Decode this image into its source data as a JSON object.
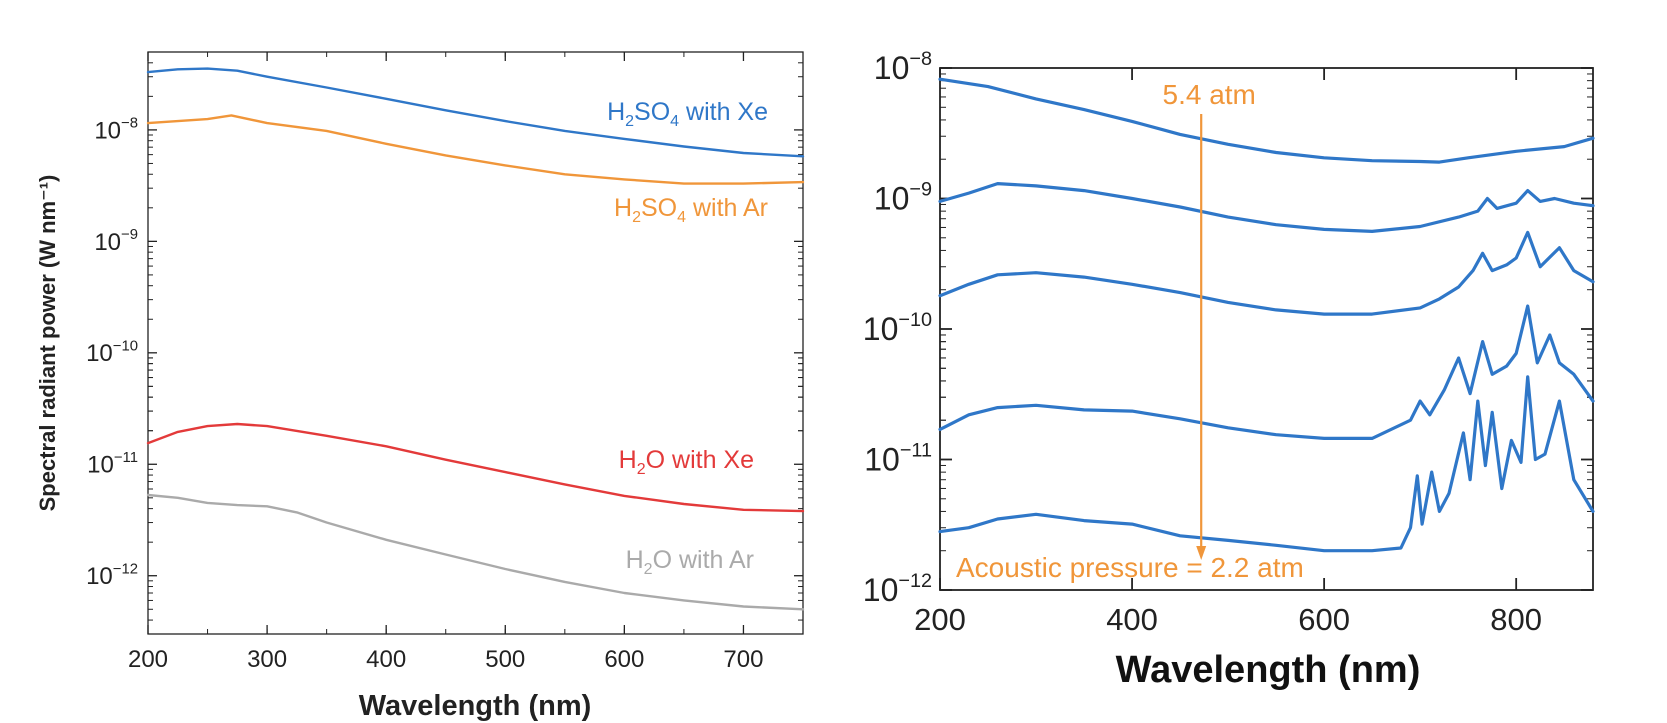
{
  "chart_data": [
    {
      "type": "line",
      "panel": "left",
      "xlabel": "Wavelength (nm)",
      "ylabel": "Spectral radiant power (W nm⁻¹)",
      "xlim": [
        200,
        750
      ],
      "ylim": [
        3e-13,
        5e-08
      ],
      "yscale": "log",
      "grid": false,
      "xticks": [
        200,
        300,
        400,
        500,
        600,
        700
      ],
      "xtick_labels": [
        "200",
        "300",
        "400",
        "500",
        "600",
        "700"
      ],
      "yticks": [
        1e-12,
        1e-11,
        1e-10,
        1e-09,
        1e-08
      ],
      "ytick_labels": [
        {
          "base": "10",
          "exp": "−12"
        },
        {
          "base": "10",
          "exp": "−11"
        },
        {
          "base": "10",
          "exp": "−10"
        },
        {
          "base": "10",
          "exp": "−9"
        },
        {
          "base": "10",
          "exp": "−8"
        }
      ],
      "series": [
        {
          "name": "H2SO4 with Xe",
          "label_parts": [
            {
              "t": "H"
            },
            {
              "t": "2",
              "sub": true
            },
            {
              "t": "SO"
            },
            {
              "t": "4",
              "sub": true
            },
            {
              "t": " with Xe"
            }
          ],
          "color": "#2f77c8",
          "x": [
            200,
            225,
            250,
            275,
            300,
            350,
            400,
            450,
            500,
            550,
            600,
            650,
            700,
            750
          ],
          "y": [
            3.3e-08,
            3.5e-08,
            3.55e-08,
            3.4e-08,
            3e-08,
            2.4e-08,
            1.9e-08,
            1.5e-08,
            1.2e-08,
            9.8e-09,
            8.3e-09,
            7.1e-09,
            6.2e-09,
            5.8e-09
          ]
        },
        {
          "name": "H2SO4 with Ar",
          "label_parts": [
            {
              "t": "H"
            },
            {
              "t": "2",
              "sub": true
            },
            {
              "t": "SO"
            },
            {
              "t": "4",
              "sub": true
            },
            {
              "t": " with Ar"
            }
          ],
          "color": "#f0963a",
          "x": [
            200,
            225,
            250,
            270,
            300,
            350,
            400,
            450,
            500,
            550,
            600,
            650,
            700,
            750
          ],
          "y": [
            1.15e-08,
            1.2e-08,
            1.25e-08,
            1.35e-08,
            1.15e-08,
            9.8e-09,
            7.5e-09,
            5.9e-09,
            4.8e-09,
            4e-09,
            3.6e-09,
            3.3e-09,
            3.3e-09,
            3.4e-09
          ]
        },
        {
          "name": "H2O with Xe",
          "label_parts": [
            {
              "t": "H"
            },
            {
              "t": "2",
              "sub": true
            },
            {
              "t": "O with Xe"
            }
          ],
          "color": "#e33a3a",
          "x": [
            200,
            225,
            250,
            275,
            300,
            350,
            400,
            450,
            500,
            550,
            600,
            650,
            700,
            750
          ],
          "y": [
            1.55e-11,
            1.95e-11,
            2.2e-11,
            2.3e-11,
            2.2e-11,
            1.8e-11,
            1.45e-11,
            1.1e-11,
            8.5e-12,
            6.6e-12,
            5.2e-12,
            4.4e-12,
            3.9e-12,
            3.8e-12
          ]
        },
        {
          "name": "H2O with Ar",
          "label_parts": [
            {
              "t": "H"
            },
            {
              "t": "2",
              "sub": true
            },
            {
              "t": "O with Ar"
            }
          ],
          "color": "#aaaaaa",
          "x": [
            200,
            225,
            250,
            275,
            300,
            325,
            350,
            400,
            450,
            500,
            550,
            600,
            650,
            700,
            750
          ],
          "y": [
            5.3e-12,
            5e-12,
            4.5e-12,
            4.3e-12,
            4.2e-12,
            3.7e-12,
            3e-12,
            2.1e-12,
            1.55e-12,
            1.15e-12,
            8.8e-13,
            7e-13,
            6e-13,
            5.3e-13,
            5e-13
          ]
        }
      ]
    },
    {
      "type": "line",
      "panel": "right",
      "xlabel": "Wavelength (nm)",
      "ylabel": "",
      "xlim": [
        200,
        880
      ],
      "ylim": [
        1e-12,
        1e-08
      ],
      "yscale": "log",
      "grid": false,
      "xticks": [
        200,
        400,
        600,
        800
      ],
      "xtick_labels": [
        "200",
        "400",
        "600",
        "800"
      ],
      "yticks": [
        1e-12,
        1e-11,
        1e-10,
        1e-09,
        1e-08
      ],
      "ytick_labels": [
        {
          "base": "10",
          "exp": "−12"
        },
        {
          "base": "10",
          "exp": "−11"
        },
        {
          "base": "10",
          "exp": "−10"
        },
        {
          "base": "10",
          "exp": "−9"
        },
        {
          "base": "10",
          "exp": "−8"
        }
      ],
      "series_color": "#2f77c8",
      "series": [
        {
          "x": [
            200,
            250,
            300,
            350,
            400,
            450,
            500,
            550,
            600,
            650,
            700,
            720,
            750,
            800,
            850,
            880
          ],
          "y": [
            8.2e-09,
            7.2e-09,
            5.8e-09,
            4.8e-09,
            3.9e-09,
            3.1e-09,
            2.6e-09,
            2.25e-09,
            2.05e-09,
            1.95e-09,
            1.92e-09,
            1.9e-09,
            2.05e-09,
            2.3e-09,
            2.5e-09,
            2.9e-09
          ]
        },
        {
          "x": [
            200,
            230,
            260,
            300,
            350,
            400,
            450,
            500,
            550,
            600,
            650,
            700,
            740,
            760,
            770,
            780,
            800,
            812,
            825,
            840,
            860,
            880
          ],
          "y": [
            9.5e-10,
            1.1e-09,
            1.3e-09,
            1.25e-09,
            1.15e-09,
            1e-09,
            8.6e-10,
            7.2e-10,
            6.3e-10,
            5.8e-10,
            5.6e-10,
            6.1e-10,
            7.2e-10,
            8e-10,
            1e-09,
            8.4e-10,
            9.2e-10,
            1.15e-09,
            9.5e-10,
            1e-09,
            9.2e-10,
            8.8e-10
          ]
        },
        {
          "x": [
            200,
            230,
            260,
            300,
            350,
            400,
            450,
            500,
            550,
            600,
            650,
            700,
            720,
            740,
            755,
            765,
            775,
            790,
            800,
            812,
            825,
            845,
            860,
            880
          ],
          "y": [
            1.8e-10,
            2.2e-10,
            2.6e-10,
            2.7e-10,
            2.5e-10,
            2.2e-10,
            1.9e-10,
            1.6e-10,
            1.4e-10,
            1.3e-10,
            1.3e-10,
            1.45e-10,
            1.7e-10,
            2.1e-10,
            2.8e-10,
            3.8e-10,
            2.8e-10,
            3.1e-10,
            3.5e-10,
            5.5e-10,
            3e-10,
            4.2e-10,
            2.8e-10,
            2.3e-10
          ]
        },
        {
          "x": [
            200,
            230,
            260,
            300,
            350,
            400,
            450,
            500,
            550,
            600,
            650,
            690,
            700,
            710,
            725,
            740,
            752,
            765,
            775,
            790,
            800,
            812,
            822,
            835,
            845,
            860,
            880
          ],
          "y": [
            1.7e-11,
            2.2e-11,
            2.5e-11,
            2.6e-11,
            2.4e-11,
            2.35e-11,
            2.05e-11,
            1.75e-11,
            1.55e-11,
            1.45e-11,
            1.45e-11,
            2e-11,
            2.8e-11,
            2.2e-11,
            3.4e-11,
            6e-11,
            3.2e-11,
            8e-11,
            4.5e-11,
            5.2e-11,
            6.5e-11,
            1.5e-10,
            5.5e-11,
            9e-11,
            5.5e-11,
            4.5e-11,
            2.8e-11
          ]
        },
        {
          "x": [
            200,
            230,
            260,
            300,
            350,
            400,
            450,
            500,
            550,
            600,
            650,
            680,
            690,
            697,
            702,
            712,
            720,
            730,
            745,
            752,
            760,
            768,
            775,
            785,
            795,
            805,
            812,
            820,
            830,
            845,
            860,
            880
          ],
          "y": [
            2.8e-12,
            3e-12,
            3.5e-12,
            3.8e-12,
            3.4e-12,
            3.2e-12,
            2.6e-12,
            2.4e-12,
            2.2e-12,
            2e-12,
            2e-12,
            2.1e-12,
            3e-12,
            7.5e-12,
            3.2e-12,
            8e-12,
            4e-12,
            5.5e-12,
            1.6e-11,
            7e-12,
            2.8e-11,
            9e-12,
            2.3e-11,
            6e-12,
            1.4e-11,
            9.5e-12,
            4.3e-11,
            1e-11,
            1.1e-11,
            2.8e-11,
            7e-12,
            4e-12
          ]
        }
      ],
      "annotations": {
        "top": "5.4 atm",
        "bottom": "Acoustic pressure = 2.2 atm",
        "arrow_x": 472,
        "arrow_color": "#f0963a"
      }
    }
  ]
}
